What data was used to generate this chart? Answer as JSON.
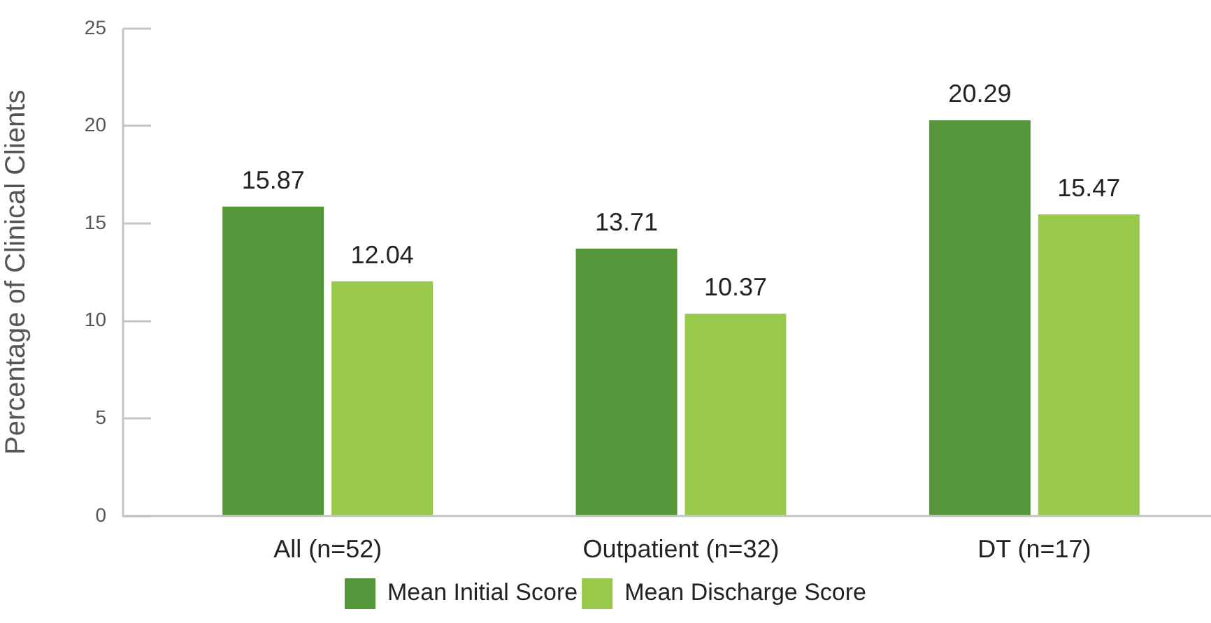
{
  "chart_data": {
    "type": "bar",
    "categories": [
      "All (n=52)",
      "Outpatient (n=32)",
      "DT (n=17)"
    ],
    "series": [
      {
        "name": "Mean Initial Score",
        "color": "#55963a",
        "values": [
          15.87,
          13.71,
          20.29
        ]
      },
      {
        "name": "Mean Discharge Score",
        "color": "#98c94b",
        "values": [
          12.04,
          10.37,
          15.47
        ]
      }
    ],
    "ylabel": "Percentage of Clinical Clients",
    "ylim": [
      0,
      25
    ],
    "yticks": [
      0,
      5,
      10,
      15,
      20,
      25
    ],
    "grid": false,
    "legend": "bottom",
    "data_labels": true
  }
}
